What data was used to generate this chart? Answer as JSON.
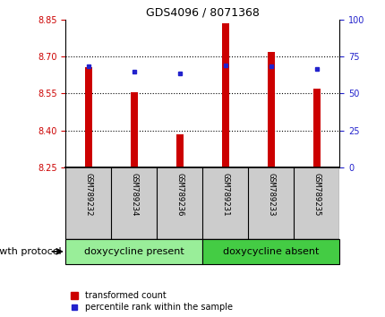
{
  "title": "GDS4096 / 8071368",
  "samples": [
    "GSM789232",
    "GSM789234",
    "GSM789236",
    "GSM789231",
    "GSM789233",
    "GSM789235"
  ],
  "red_values": [
    8.655,
    8.555,
    8.385,
    8.835,
    8.72,
    8.57
  ],
  "blue_values": [
    8.66,
    8.64,
    8.63,
    8.665,
    8.662,
    8.65
  ],
  "ylim_left": [
    8.25,
    8.85
  ],
  "yticks_left": [
    8.25,
    8.4,
    8.55,
    8.7,
    8.85
  ],
  "yticks_right": [
    0,
    25,
    50,
    75,
    100
  ],
  "ylim_right": [
    0,
    100
  ],
  "group1_label": "doxycycline present",
  "group2_label": "doxycycline absent",
  "protocol_label": "growth protocol",
  "legend_red": "transformed count",
  "legend_blue": "percentile rank within the sample",
  "bar_color": "#cc0000",
  "dot_color": "#2222cc",
  "group1_color": "#99ee99",
  "group2_color": "#44cc44",
  "left_tick_color": "#cc0000",
  "right_tick_color": "#2222cc",
  "group1_indices": [
    0,
    1,
    2
  ],
  "group2_indices": [
    3,
    4,
    5
  ],
  "base_value": 8.25,
  "bar_width": 0.15
}
